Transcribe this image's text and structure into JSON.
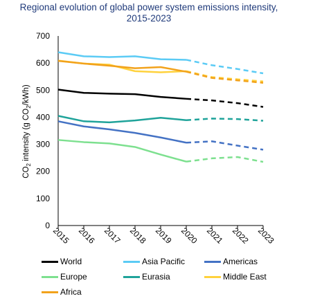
{
  "chart_data": {
    "type": "line",
    "title_lines": [
      "Regional evolution of global power system emissions intensity,",
      "2015-2023"
    ],
    "ylabel": "CO₂ intensity (g CO₂/kWh)",
    "ylabel_parts": [
      "CO",
      "2",
      " intensity (g CO",
      "2",
      "/kWh)"
    ],
    "xlabel": "",
    "x": [
      "2015",
      "2016",
      "2017",
      "2018",
      "2019",
      "2020",
      "2021",
      "2022",
      "2023"
    ],
    "ylim": [
      0,
      700
    ],
    "yticks": [
      0,
      100,
      200,
      300,
      400,
      500,
      600,
      700
    ],
    "grid": false,
    "actual_through": "2020",
    "projected_from": "2020",
    "legend_position": "bottom",
    "series": [
      {
        "name": "World",
        "color": "#000000",
        "values": [
          502,
          490,
          487,
          485,
          475,
          468,
          462,
          452,
          438
        ]
      },
      {
        "name": "Asia Pacific",
        "color": "#5bcbf5",
        "values": [
          640,
          625,
          622,
          625,
          614,
          612,
          592,
          578,
          562
        ]
      },
      {
        "name": "Americas",
        "color": "#4472c4",
        "values": [
          385,
          366,
          355,
          342,
          325,
          306,
          311,
          295,
          280
        ]
      },
      {
        "name": "Europe",
        "color": "#7de08f",
        "values": [
          316,
          308,
          303,
          290,
          262,
          236,
          248,
          253,
          235
        ]
      },
      {
        "name": "Eurasia",
        "color": "#1fa39a",
        "values": [
          405,
          385,
          381,
          388,
          398,
          389,
          395,
          393,
          387
        ]
      },
      {
        "name": "Middle East",
        "color": "#ffd23c",
        "values": [
          609,
          598,
          594,
          570,
          566,
          570,
          548,
          540,
          532
        ]
      },
      {
        "name": "Africa",
        "color": "#f2a21b",
        "values": [
          608,
          598,
          590,
          581,
          585,
          568,
          545,
          536,
          527
        ]
      }
    ]
  }
}
